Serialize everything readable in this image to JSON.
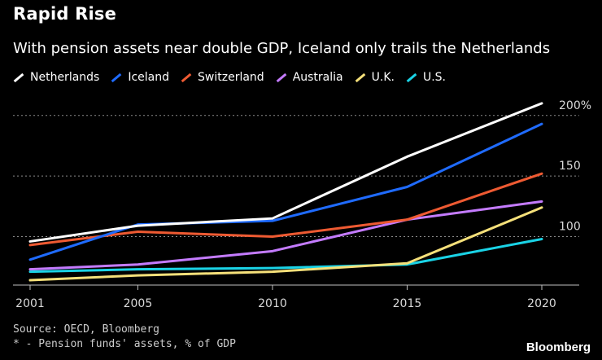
{
  "chart_data": {
    "type": "line",
    "title": "Rapid Rise",
    "subtitle": "With pension assets near double GDP, Iceland only trails the Netherlands",
    "x": [
      2001,
      2005,
      2010,
      2015,
      2020
    ],
    "x_tick_labels": [
      "2001",
      "2005",
      "2010",
      "2015",
      "2020"
    ],
    "y_tick_labels": [
      {
        "value": 100,
        "label": "100"
      },
      {
        "value": 150,
        "label": "150"
      },
      {
        "value": 200,
        "label": "200%"
      }
    ],
    "ylim": [
      60,
      220
    ],
    "grid": true,
    "series": [
      {
        "name": "Netherlands",
        "color": "#ffffff",
        "values": [
          96,
          109,
          115,
          166,
          210
        ]
      },
      {
        "name": "Iceland",
        "color": "#1f6bff",
        "values": [
          81,
          110,
          113,
          141,
          193
        ]
      },
      {
        "name": "Switzerland",
        "color": "#ee5a32",
        "values": [
          93,
          104,
          100,
          114,
          152
        ]
      },
      {
        "name": "Australia",
        "color": "#c47bff",
        "values": [
          73,
          77,
          88,
          114,
          129
        ]
      },
      {
        "name": "U.K.",
        "color": "#f5e07a",
        "values": [
          64,
          68,
          71,
          78,
          124
        ]
      },
      {
        "name": "U.S.",
        "color": "#1ad3e6",
        "values": [
          71,
          73,
          74,
          77,
          98
        ]
      }
    ]
  },
  "footer": {
    "source": "Source: OECD, Bloomberg",
    "note": "* - Pension funds' assets, % of GDP"
  },
  "brand": "Bloomberg"
}
